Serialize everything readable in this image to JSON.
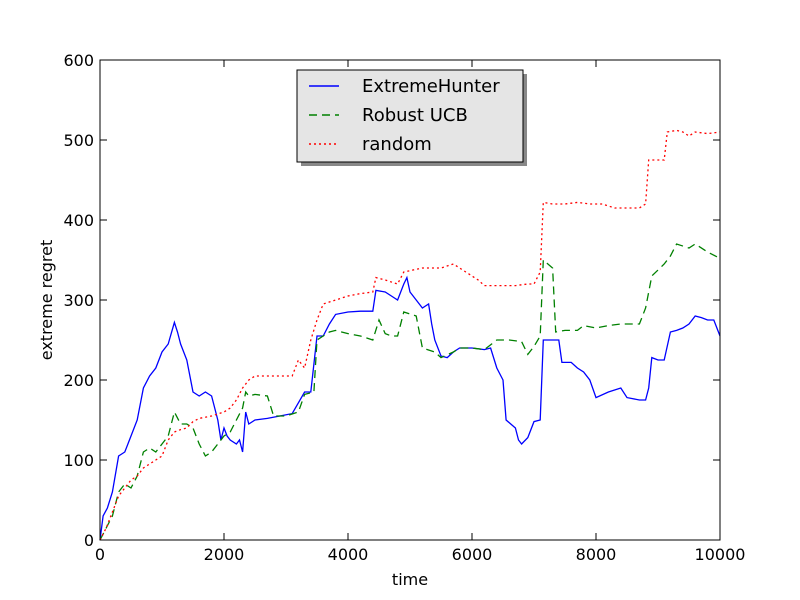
{
  "chart_data": {
    "type": "line",
    "xlabel": "time",
    "ylabel": "extreme regret",
    "xlim": [
      0,
      10000
    ],
    "ylim": [
      0,
      600
    ],
    "xticks": [
      "0",
      "2000",
      "4000",
      "6000",
      "8000",
      "10000"
    ],
    "yticks": [
      "0",
      "100",
      "200",
      "300",
      "400",
      "500",
      "600"
    ],
    "grid": false,
    "legend_position": "top-center",
    "series": [
      {
        "name": "ExtremeHunter",
        "color": "#0000ff",
        "style": "solid",
        "points": [
          [
            0,
            0
          ],
          [
            50,
            30
          ],
          [
            120,
            40
          ],
          [
            200,
            60
          ],
          [
            300,
            105
          ],
          [
            400,
            110
          ],
          [
            500,
            130
          ],
          [
            600,
            150
          ],
          [
            700,
            190
          ],
          [
            800,
            205
          ],
          [
            900,
            215
          ],
          [
            1000,
            235
          ],
          [
            1100,
            245
          ],
          [
            1200,
            272
          ],
          [
            1250,
            260
          ],
          [
            1300,
            245
          ],
          [
            1400,
            225
          ],
          [
            1500,
            185
          ],
          [
            1600,
            180
          ],
          [
            1700,
            185
          ],
          [
            1800,
            180
          ],
          [
            1900,
            150
          ],
          [
            1950,
            125
          ],
          [
            2000,
            140
          ],
          [
            2050,
            130
          ],
          [
            2100,
            125
          ],
          [
            2200,
            120
          ],
          [
            2250,
            125
          ],
          [
            2300,
            110
          ],
          [
            2350,
            160
          ],
          [
            2400,
            145
          ],
          [
            2500,
            150
          ],
          [
            2700,
            152
          ],
          [
            2900,
            155
          ],
          [
            3100,
            158
          ],
          [
            3300,
            185
          ],
          [
            3400,
            185
          ],
          [
            3500,
            255
          ],
          [
            3600,
            255
          ],
          [
            3700,
            270
          ],
          [
            3800,
            282
          ],
          [
            4000,
            285
          ],
          [
            4200,
            286
          ],
          [
            4400,
            286
          ],
          [
            4450,
            312
          ],
          [
            4600,
            310
          ],
          [
            4700,
            305
          ],
          [
            4800,
            300
          ],
          [
            4900,
            320
          ],
          [
            4950,
            328
          ],
          [
            5000,
            310
          ],
          [
            5100,
            300
          ],
          [
            5200,
            290
          ],
          [
            5300,
            295
          ],
          [
            5350,
            270
          ],
          [
            5400,
            250
          ],
          [
            5500,
            230
          ],
          [
            5600,
            228
          ],
          [
            5700,
            235
          ],
          [
            5800,
            240
          ],
          [
            6000,
            240
          ],
          [
            6200,
            238
          ],
          [
            6300,
            240
          ],
          [
            6400,
            215
          ],
          [
            6500,
            200
          ],
          [
            6550,
            150
          ],
          [
            6700,
            140
          ],
          [
            6750,
            125
          ],
          [
            6800,
            120
          ],
          [
            6900,
            128
          ],
          [
            7000,
            148
          ],
          [
            7100,
            150
          ],
          [
            7150,
            250
          ],
          [
            7300,
            250
          ],
          [
            7400,
            250
          ],
          [
            7450,
            222
          ],
          [
            7600,
            222
          ],
          [
            7700,
            215
          ],
          [
            7800,
            210
          ],
          [
            7900,
            200
          ],
          [
            8000,
            178
          ],
          [
            8200,
            185
          ],
          [
            8400,
            190
          ],
          [
            8500,
            178
          ],
          [
            8700,
            175
          ],
          [
            8800,
            175
          ],
          [
            8850,
            190
          ],
          [
            8900,
            228
          ],
          [
            9000,
            225
          ],
          [
            9100,
            225
          ],
          [
            9200,
            260
          ],
          [
            9300,
            262
          ],
          [
            9400,
            265
          ],
          [
            9500,
            270
          ],
          [
            9600,
            280
          ],
          [
            9700,
            278
          ],
          [
            9800,
            275
          ],
          [
            9900,
            275
          ],
          [
            10000,
            255
          ]
        ]
      },
      {
        "name": "Robust UCB",
        "color": "#008000",
        "style": "dashed",
        "points": [
          [
            0,
            0
          ],
          [
            100,
            15
          ],
          [
            200,
            30
          ],
          [
            300,
            60
          ],
          [
            400,
            70
          ],
          [
            500,
            65
          ],
          [
            600,
            80
          ],
          [
            700,
            110
          ],
          [
            800,
            115
          ],
          [
            900,
            110
          ],
          [
            1000,
            120
          ],
          [
            1100,
            130
          ],
          [
            1200,
            160
          ],
          [
            1300,
            145
          ],
          [
            1400,
            145
          ],
          [
            1500,
            140
          ],
          [
            1600,
            120
          ],
          [
            1700,
            105
          ],
          [
            1800,
            110
          ],
          [
            1900,
            120
          ],
          [
            2000,
            130
          ],
          [
            2100,
            135
          ],
          [
            2200,
            150
          ],
          [
            2300,
            165
          ],
          [
            2350,
            185
          ],
          [
            2400,
            180
          ],
          [
            2500,
            182
          ],
          [
            2700,
            180
          ],
          [
            2800,
            155
          ],
          [
            3000,
            155
          ],
          [
            3200,
            160
          ],
          [
            3300,
            182
          ],
          [
            3450,
            185
          ],
          [
            3500,
            250
          ],
          [
            3600,
            255
          ],
          [
            3700,
            260
          ],
          [
            3800,
            262
          ],
          [
            4000,
            258
          ],
          [
            4200,
            255
          ],
          [
            4400,
            250
          ],
          [
            4500,
            275
          ],
          [
            4600,
            258
          ],
          [
            4700,
            255
          ],
          [
            4800,
            255
          ],
          [
            4900,
            285
          ],
          [
            5100,
            280
          ],
          [
            5200,
            240
          ],
          [
            5400,
            235
          ],
          [
            5500,
            228
          ],
          [
            5700,
            235
          ],
          [
            5800,
            240
          ],
          [
            6000,
            240
          ],
          [
            6200,
            238
          ],
          [
            6400,
            250
          ],
          [
            6600,
            250
          ],
          [
            6800,
            248
          ],
          [
            6900,
            232
          ],
          [
            7000,
            242
          ],
          [
            7100,
            255
          ],
          [
            7150,
            350
          ],
          [
            7300,
            340
          ],
          [
            7350,
            260
          ],
          [
            7500,
            262
          ],
          [
            7700,
            262
          ],
          [
            7800,
            268
          ],
          [
            8000,
            265
          ],
          [
            8200,
            268
          ],
          [
            8400,
            270
          ],
          [
            8700,
            270
          ],
          [
            8800,
            290
          ],
          [
            8900,
            330
          ],
          [
            9100,
            345
          ],
          [
            9200,
            355
          ],
          [
            9300,
            370
          ],
          [
            9500,
            365
          ],
          [
            9600,
            370
          ],
          [
            9800,
            360
          ],
          [
            10000,
            352
          ]
        ]
      },
      {
        "name": "random",
        "color": "#ff0000",
        "style": "dotted",
        "points": [
          [
            0,
            0
          ],
          [
            100,
            15
          ],
          [
            200,
            35
          ],
          [
            300,
            55
          ],
          [
            400,
            65
          ],
          [
            500,
            75
          ],
          [
            600,
            80
          ],
          [
            700,
            90
          ],
          [
            800,
            95
          ],
          [
            900,
            100
          ],
          [
            1000,
            105
          ],
          [
            1100,
            125
          ],
          [
            1200,
            135
          ],
          [
            1300,
            138
          ],
          [
            1400,
            140
          ],
          [
            1500,
            148
          ],
          [
            1600,
            152
          ],
          [
            1800,
            155
          ],
          [
            2000,
            160
          ],
          [
            2100,
            165
          ],
          [
            2200,
            175
          ],
          [
            2300,
            190
          ],
          [
            2400,
            200
          ],
          [
            2500,
            205
          ],
          [
            2700,
            205
          ],
          [
            2900,
            205
          ],
          [
            3100,
            205
          ],
          [
            3200,
            225
          ],
          [
            3300,
            215
          ],
          [
            3400,
            250
          ],
          [
            3500,
            275
          ],
          [
            3600,
            295
          ],
          [
            3800,
            300
          ],
          [
            4000,
            305
          ],
          [
            4200,
            308
          ],
          [
            4400,
            310
          ],
          [
            4450,
            328
          ],
          [
            4600,
            325
          ],
          [
            4800,
            320
          ],
          [
            4900,
            335
          ],
          [
            5200,
            340
          ],
          [
            5500,
            340
          ],
          [
            5700,
            345
          ],
          [
            5900,
            335
          ],
          [
            6100,
            325
          ],
          [
            6200,
            318
          ],
          [
            6400,
            318
          ],
          [
            6700,
            318
          ],
          [
            6900,
            320
          ],
          [
            7000,
            320
          ],
          [
            7100,
            335
          ],
          [
            7150,
            422
          ],
          [
            7300,
            420
          ],
          [
            7500,
            420
          ],
          [
            7700,
            422
          ],
          [
            7900,
            420
          ],
          [
            8100,
            420
          ],
          [
            8300,
            415
          ],
          [
            8500,
            415
          ],
          [
            8700,
            415
          ],
          [
            8800,
            420
          ],
          [
            8850,
            475
          ],
          [
            9100,
            475
          ],
          [
            9150,
            510
          ],
          [
            9300,
            512
          ],
          [
            9400,
            510
          ],
          [
            9500,
            505
          ],
          [
            9600,
            510
          ],
          [
            9800,
            508
          ],
          [
            10000,
            510
          ]
        ]
      }
    ]
  }
}
